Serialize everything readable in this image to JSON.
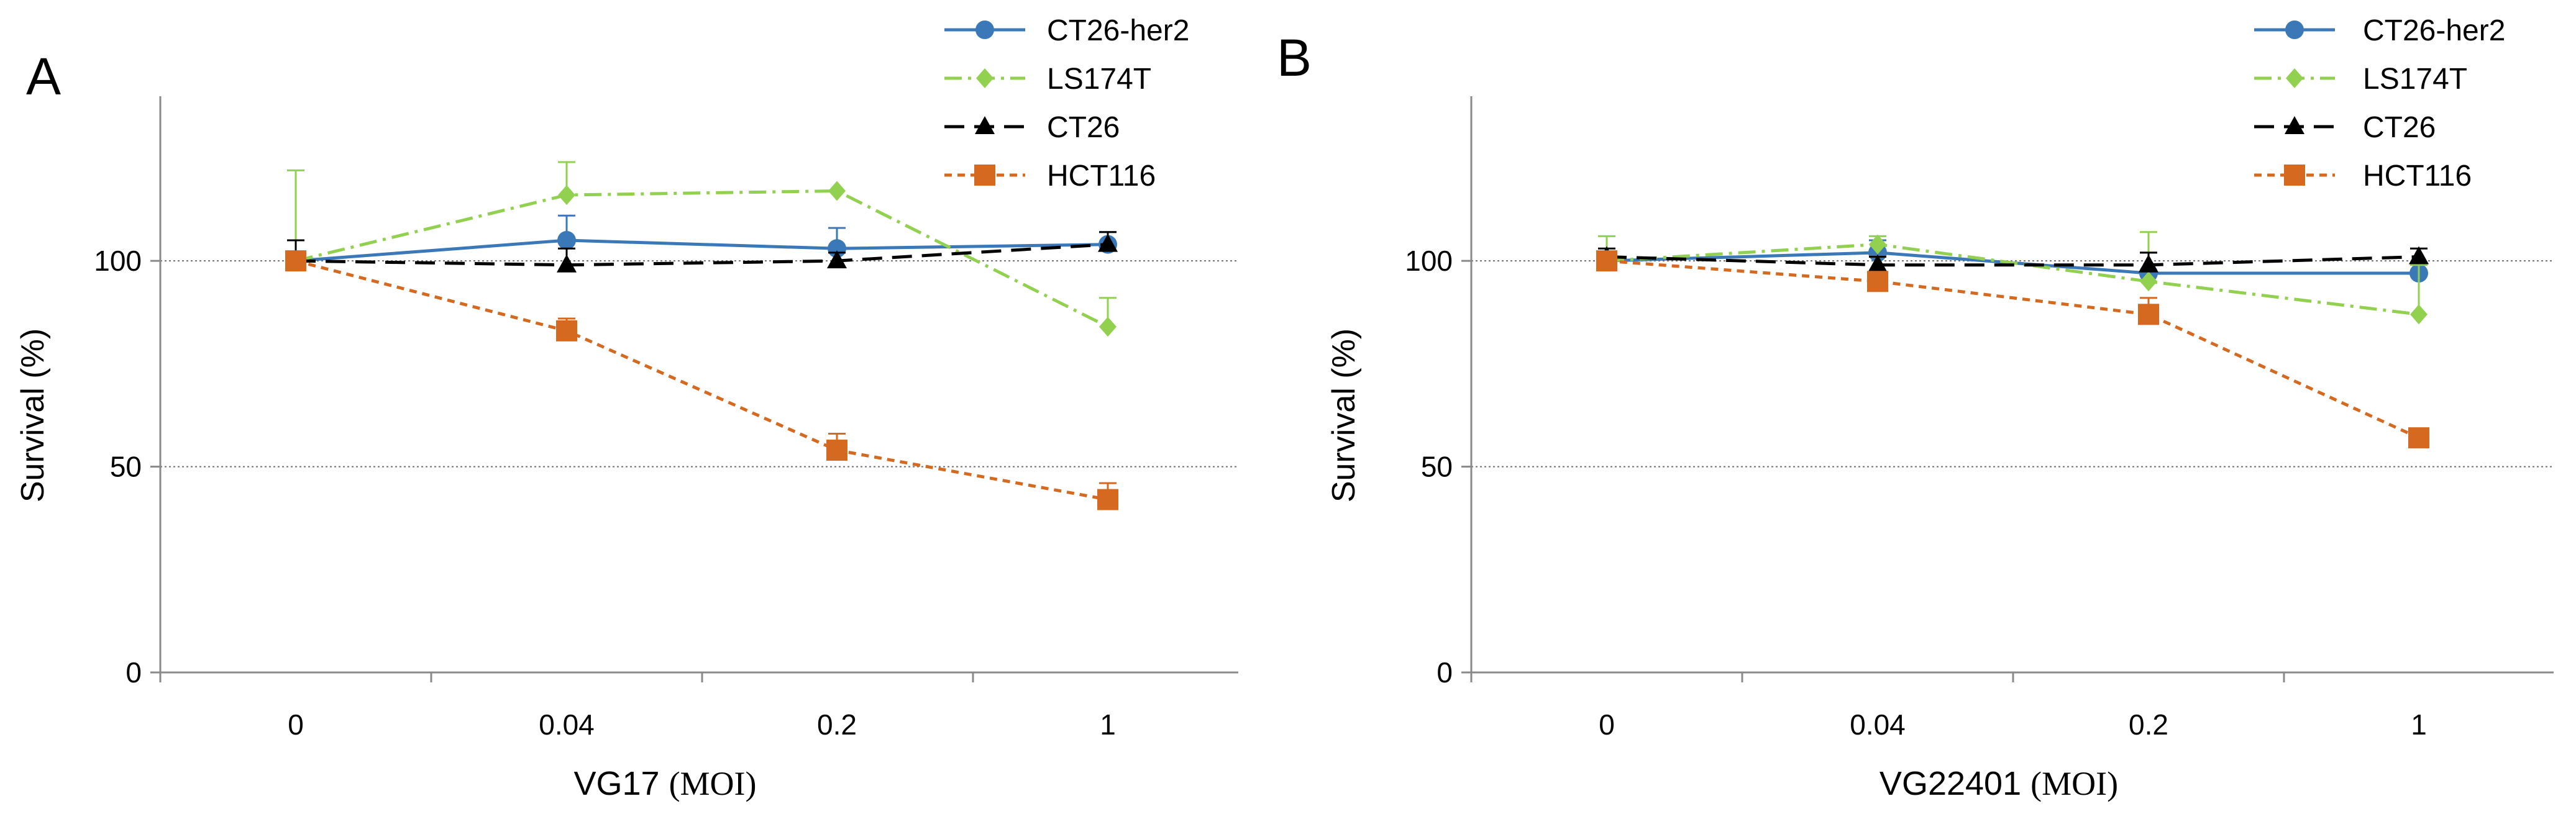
{
  "chart_data": [
    {
      "type": "line",
      "panel_label": "A",
      "title": "",
      "xlabel_main": "VG17",
      "xlabel_unit": "(MOI)",
      "ylabel": "Survival (%)",
      "categories": [
        "0",
        "0.04",
        "0.2",
        "1"
      ],
      "ylim": [
        0,
        140
      ],
      "yticks": [
        0,
        50,
        100
      ],
      "ytick_labels": [
        "0",
        "50",
        "100"
      ],
      "gridlines": [
        50,
        100
      ],
      "legend_position": "top-right",
      "series": [
        {
          "name": "CT26-her2",
          "values": [
            100,
            105,
            103,
            104
          ],
          "errors": [
            0,
            6,
            5,
            3
          ]
        },
        {
          "name": "LS174T",
          "values": [
            100,
            116,
            117,
            84
          ],
          "errors": [
            22,
            8,
            0,
            7
          ]
        },
        {
          "name": "CT26",
          "values": [
            100,
            99,
            100,
            104
          ],
          "errors": [
            5,
            4,
            2,
            3
          ]
        },
        {
          "name": "HCT116",
          "values": [
            100,
            83,
            54,
            42
          ],
          "errors": [
            0,
            3,
            4,
            4
          ]
        }
      ]
    },
    {
      "type": "line",
      "panel_label": "B",
      "title": "",
      "xlabel_main": "VG22401",
      "xlabel_unit": "(MOI)",
      "ylabel": "Survival (%)",
      "categories": [
        "0",
        "0.04",
        "0.2",
        "1"
      ],
      "ylim": [
        0,
        140
      ],
      "yticks": [
        0,
        50,
        100
      ],
      "ytick_labels": [
        "0",
        "50",
        "100"
      ],
      "gridlines": [
        50,
        100
      ],
      "legend_position": "top-right",
      "series": [
        {
          "name": "CT26-her2",
          "values": [
            100,
            102,
            97,
            97
          ],
          "errors": [
            0,
            3,
            5,
            0
          ]
        },
        {
          "name": "LS174T",
          "values": [
            100,
            104,
            95,
            87
          ],
          "errors": [
            6,
            2,
            12,
            12
          ]
        },
        {
          "name": "CT26",
          "values": [
            101,
            99,
            99,
            101
          ],
          "errors": [
            2,
            2,
            3,
            2
          ]
        },
        {
          "name": "HCT116",
          "values": [
            100,
            95,
            87,
            57
          ],
          "errors": [
            0,
            1,
            4,
            0
          ]
        }
      ]
    }
  ],
  "series_styles": {
    "CT26-her2": {
      "color": "#3a78b8",
      "dash": "",
      "marker": "circle"
    },
    "LS174T": {
      "color": "#92d050",
      "dash": "28,10,5,10",
      "marker": "diamond"
    },
    "CT26": {
      "color": "#000000",
      "dash": "32,16",
      "marker": "triangle"
    },
    "HCT116": {
      "color": "#d4691f",
      "dash": "12,9",
      "marker": "square"
    }
  }
}
